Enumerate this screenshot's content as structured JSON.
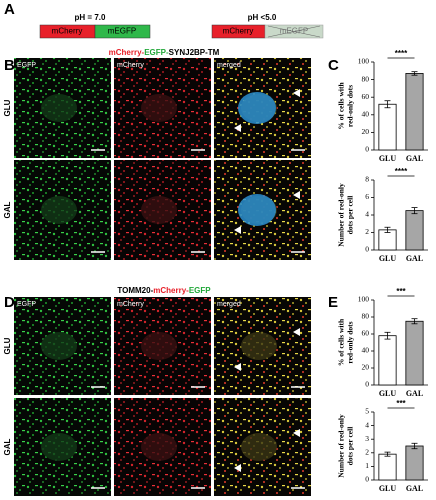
{
  "panel_labels": [
    "A",
    "B",
    "C",
    "D",
    "E"
  ],
  "schematic": {
    "neutral": {
      "label": "pH = 7.0",
      "parts": [
        "mCherry",
        "mEGFP"
      ]
    },
    "acidic": {
      "label": "pH <5.0",
      "parts": [
        "mCherry",
        "mEGFP"
      ]
    }
  },
  "image_panels": [
    {
      "title_parts": [
        {
          "text": "mCherry-",
          "color": "#e8202a"
        },
        {
          "text": "EGFP-",
          "color": "#22a83a"
        },
        {
          "text": "SYNJ2BP-TM",
          "color": "#000000"
        }
      ],
      "columns": [
        "EGFP",
        "mCherry",
        "merged"
      ],
      "rows": [
        "GLU",
        "GAL"
      ]
    },
    {
      "title_parts": [
        {
          "text": "TOMM20-",
          "color": "#000000"
        },
        {
          "text": "mCherry-",
          "color": "#e8202a"
        },
        {
          "text": "EGFP",
          "color": "#22a83a"
        }
      ],
      "columns": [
        "EGFP",
        "mCherry",
        "merged"
      ],
      "rows": [
        "GLU",
        "GAL"
      ]
    }
  ],
  "chart_data": [
    {
      "type": "bar",
      "ylabel": [
        "% of cells with",
        "red-only dots"
      ],
      "categories": [
        "GLU",
        "GAL"
      ],
      "values": [
        52,
        87
      ],
      "errors": [
        4,
        2
      ],
      "colors": [
        "#ffffff",
        "#a6a6a6"
      ],
      "ylim": [
        0,
        100
      ],
      "yticks": [
        0,
        20,
        40,
        60,
        80,
        100
      ],
      "annotation": "****"
    },
    {
      "type": "bar",
      "ylabel": [
        "Number of red-only",
        "dots per cell"
      ],
      "categories": [
        "GLU",
        "GAL"
      ],
      "values": [
        2.3,
        4.5
      ],
      "errors": [
        0.3,
        0.35
      ],
      "colors": [
        "#ffffff",
        "#a6a6a6"
      ],
      "ylim": [
        0,
        8
      ],
      "yticks": [
        0,
        2,
        4,
        6,
        8
      ],
      "annotation": "****"
    },
    {
      "type": "bar",
      "ylabel": [
        "% of cells with",
        "red-only dots"
      ],
      "categories": [
        "GLU",
        "GAL"
      ],
      "values": [
        58,
        75
      ],
      "errors": [
        4,
        3
      ],
      "colors": [
        "#ffffff",
        "#a6a6a6"
      ],
      "ylim": [
        0,
        100
      ],
      "yticks": [
        0,
        20,
        40,
        60,
        80,
        100
      ],
      "annotation": "***"
    },
    {
      "type": "bar",
      "ylabel": [
        "Number of red-only",
        "dots per cell"
      ],
      "categories": [
        "GLU",
        "GAL"
      ],
      "values": [
        1.9,
        2.5
      ],
      "errors": [
        0.15,
        0.2
      ],
      "colors": [
        "#ffffff",
        "#a6a6a6"
      ],
      "ylim": [
        0,
        5
      ],
      "yticks": [
        0,
        1,
        2,
        3,
        4,
        5
      ],
      "annotation": "***"
    }
  ]
}
